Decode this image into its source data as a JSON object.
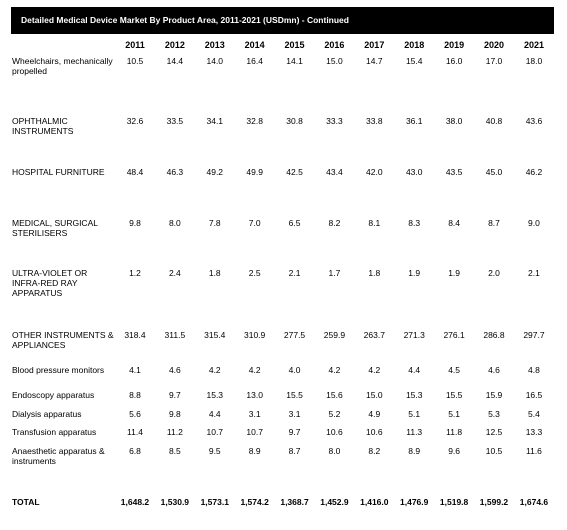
{
  "title": "Detailed Medical Device Market By Product Area, 2011-2021 (USDmn) - Continued",
  "years": [
    "2011",
    "2012",
    "2013",
    "2014",
    "2015",
    "2016",
    "2017",
    "2018",
    "2019",
    "2020",
    "2021"
  ],
  "rows": [
    {
      "label": "Wheelchairs, mechanically propelled",
      "values": [
        "10.5",
        "14.4",
        "14.0",
        "16.4",
        "14.1",
        "15.0",
        "14.7",
        "15.4",
        "16.0",
        "17.0",
        "18.0"
      ]
    },
    {
      "label": "OPHTHALMIC INSTRUMENTS",
      "values": [
        "32.6",
        "33.5",
        "34.1",
        "32.8",
        "30.8",
        "33.3",
        "33.8",
        "36.1",
        "38.0",
        "40.8",
        "43.6"
      ]
    },
    {
      "label": "HOSPITAL FURNITURE",
      "values": [
        "48.4",
        "46.3",
        "49.2",
        "49.9",
        "42.5",
        "43.4",
        "42.0",
        "43.0",
        "43.5",
        "45.0",
        "46.2"
      ]
    },
    {
      "label": "MEDICAL, SURGICAL STERILISERS",
      "values": [
        "9.8",
        "8.0",
        "7.8",
        "7.0",
        "6.5",
        "8.2",
        "8.1",
        "8.3",
        "8.4",
        "8.7",
        "9.0"
      ]
    },
    {
      "label": "ULTRA-VIOLET OR INFRA-RED RAY APPARATUS",
      "values": [
        "1.2",
        "2.4",
        "1.8",
        "2.5",
        "2.1",
        "1.7",
        "1.8",
        "1.9",
        "1.9",
        "2.0",
        "2.1"
      ]
    },
    {
      "label": "OTHER INSTRUMENTS & APPLIANCES",
      "values": [
        "318.4",
        "311.5",
        "315.4",
        "310.9",
        "277.5",
        "259.9",
        "263.7",
        "271.3",
        "276.1",
        "286.8",
        "297.7"
      ]
    },
    {
      "label": "Blood pressure monitors",
      "values": [
        "4.1",
        "4.6",
        "4.2",
        "4.2",
        "4.0",
        "4.2",
        "4.2",
        "4.4",
        "4.5",
        "4.6",
        "4.8"
      ]
    },
    {
      "label": "Endoscopy apparatus",
      "values": [
        "8.8",
        "9.7",
        "15.3",
        "13.0",
        "15.5",
        "15.6",
        "15.0",
        "15.3",
        "15.5",
        "15.9",
        "16.5"
      ]
    },
    {
      "label": "Dialysis apparatus",
      "values": [
        "5.6",
        "9.8",
        "4.4",
        "3.1",
        "3.1",
        "5.2",
        "4.9",
        "5.1",
        "5.1",
        "5.3",
        "5.4"
      ]
    },
    {
      "label": "Transfusion apparatus",
      "values": [
        "11.4",
        "11.2",
        "10.7",
        "10.7",
        "9.7",
        "10.6",
        "10.6",
        "11.3",
        "11.8",
        "12.5",
        "13.3"
      ]
    },
    {
      "label": "Anaesthetic apparatus & instruments",
      "values": [
        "6.8",
        "8.5",
        "9.5",
        "8.9",
        "8.7",
        "8.0",
        "8.2",
        "8.9",
        "9.6",
        "10.5",
        "11.6"
      ]
    },
    {
      "label": "TOTAL",
      "values": [
        "1,648.2",
        "1,530.9",
        "1,573.1",
        "1,574.2",
        "1,368.7",
        "1,452.9",
        "1,416.0",
        "1,476.9",
        "1,519.8",
        "1,599.2",
        "1,674.6"
      ]
    }
  ]
}
